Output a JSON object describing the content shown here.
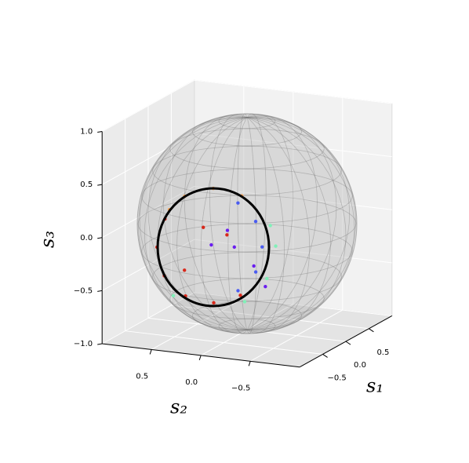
{
  "chart_data": {
    "type": "scatter3d",
    "xlabel": "s₁",
    "ylabel": "s₂",
    "zlabel": "s₃",
    "xlim": [
      -1,
      1
    ],
    "ylim": [
      -1,
      1
    ],
    "zlim": [
      -1,
      1
    ],
    "xticks": [
      {
        "value": -0.5,
        "label": "−0.5"
      },
      {
        "value": 0,
        "label": "0.0"
      },
      {
        "value": 0.5,
        "label": "0.5"
      }
    ],
    "yticks": [
      {
        "value": 0.5,
        "label": "0.5"
      },
      {
        "value": 0,
        "label": "0.0"
      },
      {
        "value": -0.5,
        "label": "−0.5"
      }
    ],
    "zticks": [
      {
        "value": -1,
        "label": "−1.0"
      },
      {
        "value": -0.5,
        "label": "−0.5"
      },
      {
        "value": 0,
        "label": "0.0"
      },
      {
        "value": 0.5,
        "label": "0.5"
      },
      {
        "value": 1,
        "label": "1.0"
      }
    ],
    "grid": true,
    "series": [
      {
        "color": "#80f0b8",
        "x": [
          -0.75,
          -0.77,
          -0.78,
          -0.72,
          -0.76
        ],
        "y": [
          -0.64,
          -0.56,
          -0.34,
          0.41,
          -0.59
        ],
        "z": [
          0.04,
          -0.27,
          -0.51,
          -0.55,
          0.23
        ]
      },
      {
        "color": "#f0a055",
        "x": [
          -0.8,
          -0.84,
          -0.86,
          -0.87
        ],
        "y": [
          -0.32,
          -0.05,
          0.23,
          0.38
        ],
        "z": [
          0.49,
          0.54,
          0.44,
          0.3
        ]
      },
      {
        "color": "#d8281a",
        "x": [
          -0.88,
          -0.86,
          -0.83,
          -0.82,
          -0.83,
          -0.83,
          -0.97,
          -0.95,
          -0.95
        ],
        "y": [
          0.42,
          0.51,
          0.45,
          0.24,
          -0.05,
          -0.32,
          -0.01,
          -0.24,
          0.19
        ],
        "z": [
          0.21,
          -0.07,
          -0.34,
          -0.51,
          -0.54,
          -0.44,
          0.2,
          0.15,
          -0.23
        ]
      },
      {
        "color": "#4a5cf0",
        "x": [
          -0.82,
          -0.83,
          -0.84,
          -0.84,
          -0.86
        ],
        "y": [
          -0.47,
          -0.54,
          -0.48,
          -0.3,
          -0.31
        ],
        "z": [
          0.27,
          0.04,
          -0.2,
          0.43,
          -0.39
        ]
      },
      {
        "color": "#6a1ef0",
        "x": [
          -0.94,
          -0.99,
          -0.86,
          -0.94,
          -0.76
        ],
        "y": [
          -0.31,
          -0.1,
          -0.47,
          -0.24,
          -0.54
        ],
        "z": [
          0.04,
          0.05,
          -0.14,
          0.19,
          -0.35
        ]
      }
    ]
  }
}
